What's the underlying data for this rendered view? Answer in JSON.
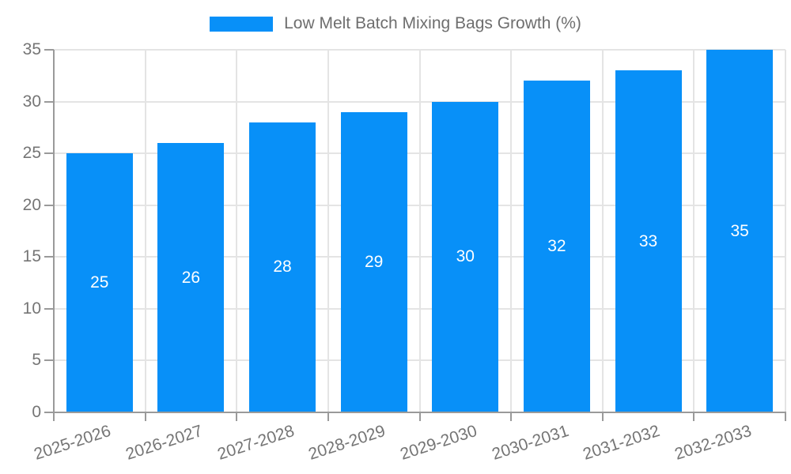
{
  "legend": {
    "label": "Low Melt Batch Mixing Bags Growth (%)",
    "swatch_color": "#0890F8"
  },
  "chart_data": {
    "type": "bar",
    "title": "Low Melt Batch Mixing Bags Growth (%)",
    "categories": [
      "2025-2026",
      "2026-2027",
      "2027-2028",
      "2028-2029",
      "2029-2030",
      "2030-2031",
      "2031-2032",
      "2032-2033"
    ],
    "series": [
      {
        "name": "Low Melt Batch Mixing Bags Growth (%)",
        "values": [
          25,
          26,
          28,
          29,
          30,
          32,
          33,
          35
        ]
      }
    ],
    "values": [
      25,
      26,
      28,
      29,
      30,
      32,
      33,
      35
    ],
    "value_labels": [
      "25",
      "26",
      "28",
      "29",
      "30",
      "32",
      "33",
      "35"
    ],
    "xlabel": "",
    "ylabel": "",
    "ylim": [
      0,
      35
    ],
    "yticks": [
      0,
      5,
      10,
      15,
      20,
      25,
      30,
      35
    ],
    "ytick_labels": [
      "0",
      "5",
      "10",
      "15",
      "20",
      "25",
      "30",
      "35"
    ],
    "grid": true,
    "legend_position": "top-center",
    "bar_color": "#0890F8",
    "value_label_color": "#ffffff",
    "axis_color": "#9a9a9a",
    "grid_color": "#e4e4e4",
    "tick_label_color": "#757575",
    "x_label_rotation_deg": -18
  }
}
